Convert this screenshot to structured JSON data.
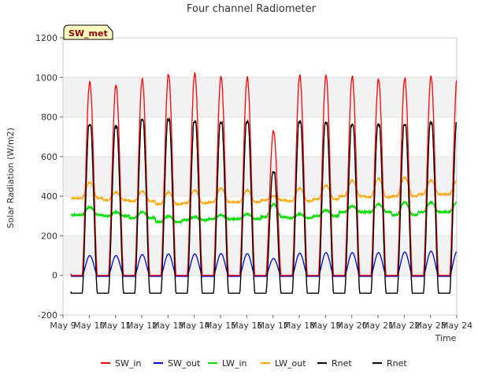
{
  "chart_data": {
    "type": "line",
    "title": "Four channel Radiometer",
    "xlabel": "Time",
    "ylabel": "Solar Radiation (W/m2)",
    "badge": "SW_met",
    "xlim": [
      9,
      24
    ],
    "ylim": [
      -200,
      1200
    ],
    "x_ticks": [
      {
        "v": 9,
        "label": "May 9"
      },
      {
        "v": 10,
        "label": "May 10"
      },
      {
        "v": 11,
        "label": "May 11"
      },
      {
        "v": 12,
        "label": "May 12"
      },
      {
        "v": 13,
        "label": "May 13"
      },
      {
        "v": 14,
        "label": "May 14"
      },
      {
        "v": 15,
        "label": "May 15"
      },
      {
        "v": 16,
        "label": "May 16"
      },
      {
        "v": 17,
        "label": "May 17"
      },
      {
        "v": 18,
        "label": "May 18"
      },
      {
        "v": 19,
        "label": "May 19"
      },
      {
        "v": 20,
        "label": "May 20"
      },
      {
        "v": 21,
        "label": "May 21"
      },
      {
        "v": 22,
        "label": "May 22"
      },
      {
        "v": 23,
        "label": "May 23"
      },
      {
        "v": 24,
        "label": "May 24"
      }
    ],
    "y_ticks": [
      {
        "v": -200,
        "label": "-200"
      },
      {
        "v": 0,
        "label": "0"
      },
      {
        "v": 200,
        "label": "200"
      },
      {
        "v": 400,
        "label": "400"
      },
      {
        "v": 600,
        "label": "600"
      },
      {
        "v": 800,
        "label": "800"
      },
      {
        "v": 1000,
        "label": "1000"
      },
      {
        "v": 1200,
        "label": "1200"
      }
    ],
    "day_start": 9.3,
    "daily_peaks": {
      "days": [
        10,
        11,
        12,
        13,
        14,
        15,
        16,
        17,
        18,
        19,
        20,
        21,
        22,
        23
      ],
      "SW_in": [
        975,
        960,
        990,
        1015,
        1020,
        1005,
        1000,
        730,
        1010,
        1010,
        1005,
        990,
        995,
        1005
      ],
      "SW_out": [
        100,
        100,
        105,
        108,
        108,
        110,
        110,
        85,
        112,
        115,
        115,
        115,
        118,
        122
      ],
      "LW_in_day": [
        345,
        320,
        320,
        300,
        295,
        305,
        310,
        360,
        310,
        330,
        350,
        360,
        370,
        370
      ],
      "LW_in_night": [
        305,
        300,
        290,
        270,
        280,
        285,
        285,
        295,
        290,
        300,
        320,
        320,
        305,
        320
      ],
      "LW_out_day": [
        470,
        420,
        425,
        420,
        430,
        440,
        430,
        400,
        440,
        455,
        480,
        490,
        495,
        480
      ],
      "LW_out_night": [
        390,
        380,
        375,
        360,
        365,
        370,
        370,
        380,
        375,
        385,
        400,
        395,
        400,
        410
      ],
      "Rnet": [
        760,
        750,
        785,
        785,
        775,
        770,
        775,
        520,
        775,
        770,
        760,
        760,
        760,
        770
      ],
      "Rnet_night": -90
    },
    "series": [
      {
        "name": "SW_in",
        "color": "#ff0000"
      },
      {
        "name": "SW_out",
        "color": "#0000cc"
      },
      {
        "name": "LW_in",
        "color": "#00dd00"
      },
      {
        "name": "LW_out",
        "color": "#ffa500"
      },
      {
        "name": "Rnet",
        "color": "#000000"
      },
      {
        "name": "Rnet",
        "color": "#000000"
      }
    ]
  }
}
